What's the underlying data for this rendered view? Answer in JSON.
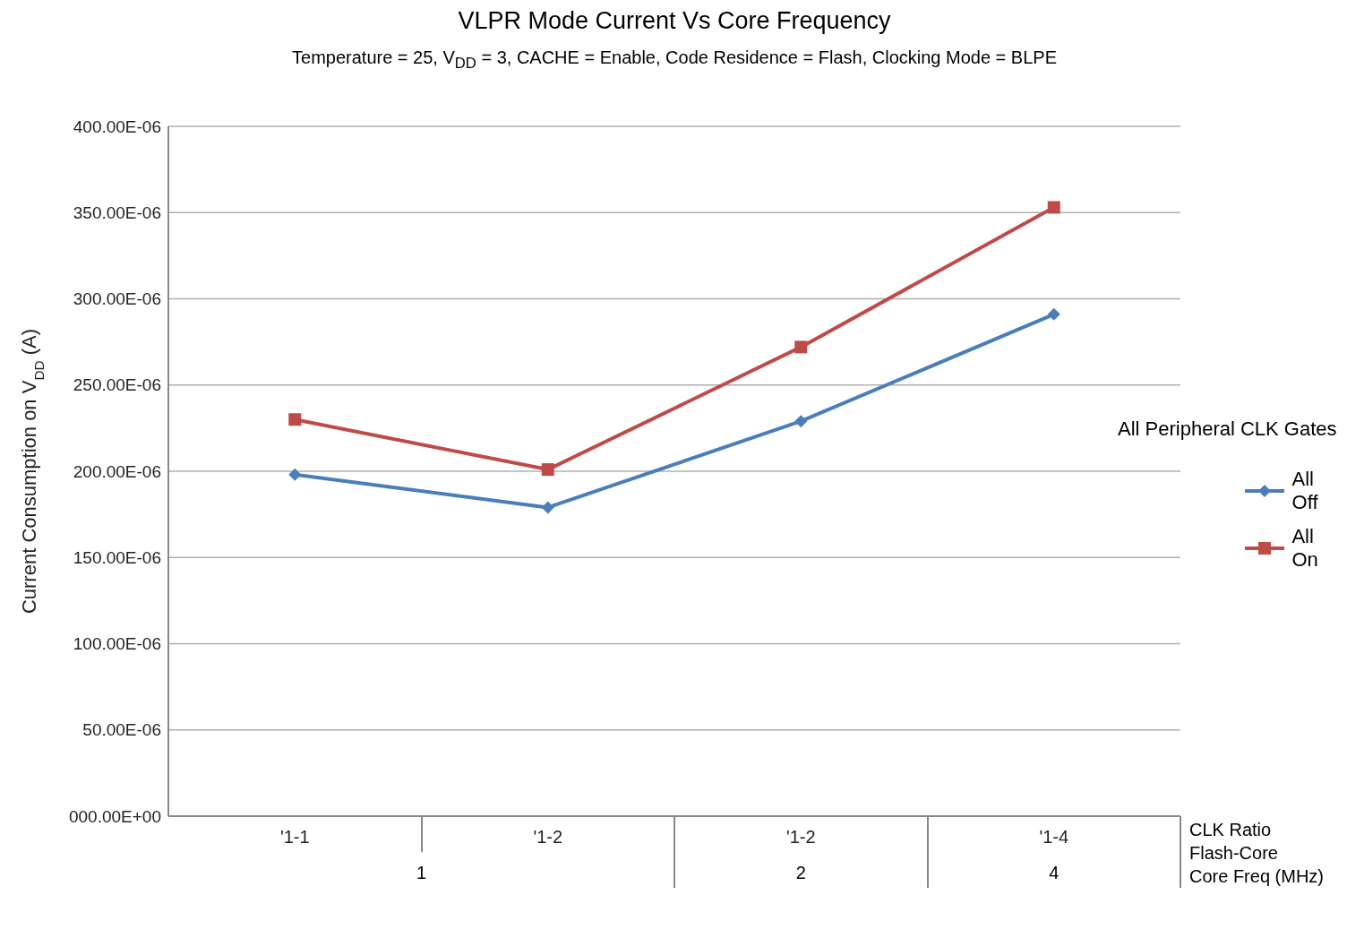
{
  "chart_data": {
    "type": "line",
    "title": "VLPR Mode Current Vs Core Frequency",
    "subtitle": "Temperature = 25, V$_{DD}$ = 3, CACHE = Enable, Code Residence = Flash, Clocking Mode = BLPE",
    "ylabel": "Current Consumption on V$_{DD}$ (A)",
    "xlabel": "CLK Ratio\nFlash-Core\nCore Freq (MHz)",
    "legend_title": "All Peripheral CLK Gates",
    "legend": "right",
    "grid": "y",
    "line_style": "solid",
    "categories": [
      "'1-1",
      "'1-2",
      "'1-2",
      "'1-4"
    ],
    "annotations": [
      "1",
      "2",
      "4"
    ],
    "series": [
      {
        "name": "All Off",
        "color": "#4a7ebb",
        "marker": "diamond",
        "values": [
          0.000198,
          0.000179,
          0.000229,
          0.000291
        ]
      },
      {
        "name": "All On",
        "color": "#be4b48",
        "marker": "square",
        "values": [
          0.00023,
          0.000201,
          0.000272,
          0.000353
        ]
      }
    ],
    "ylim": [
      0,
      0.0004
    ],
    "yticks": [
      {
        "value": 0,
        "label": "000.00E+00"
      },
      {
        "value": 5e-05,
        "label": "50.00E-06"
      },
      {
        "value": 0.0001,
        "label": "100.00E-06"
      },
      {
        "value": 0.00015,
        "label": "150.00E-06"
      },
      {
        "value": 0.0002,
        "label": "200.00E-06"
      },
      {
        "value": 0.00025,
        "label": "250.00E-06"
      },
      {
        "value": 0.0003,
        "label": "300.00E-06"
      },
      {
        "value": 0.00035,
        "label": "350.00E-06"
      },
      {
        "value": 0.0004,
        "label": "400.00E-06"
      }
    ]
  }
}
